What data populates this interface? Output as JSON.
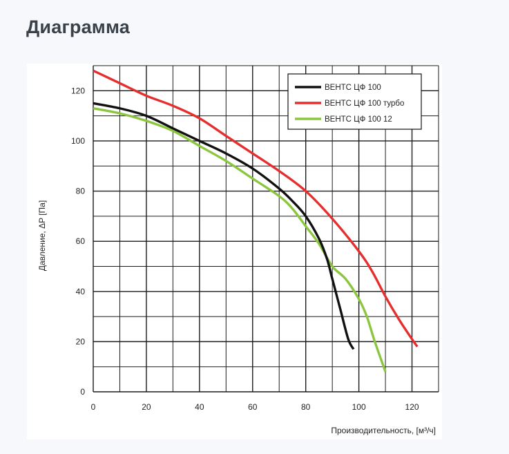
{
  "page": {
    "title": "Диаграмма"
  },
  "colors": {
    "background": "#f6f8fb",
    "panel": "#ffffff",
    "grid": "#1a1a1a"
  },
  "chart_data": {
    "type": "line",
    "title": "",
    "xlabel": "Производительность, [м³/ч]",
    "ylabel": "Давление, ΔP [Па]",
    "xlim": [
      0,
      130
    ],
    "ylim": [
      0,
      130
    ],
    "xticks": [
      0,
      20,
      40,
      60,
      80,
      100,
      120
    ],
    "yticks": [
      0,
      20,
      40,
      60,
      80,
      100,
      120
    ],
    "grid": true,
    "legend_position": "top-right",
    "series": [
      {
        "name": "ВЕНТС ЦФ 100",
        "color": "#111111",
        "points": [
          [
            0,
            115
          ],
          [
            10,
            113
          ],
          [
            20,
            110
          ],
          [
            30,
            105
          ],
          [
            40,
            100
          ],
          [
            50,
            95
          ],
          [
            60,
            89
          ],
          [
            70,
            81
          ],
          [
            75,
            76
          ],
          [
            80,
            70
          ],
          [
            85,
            61
          ],
          [
            88,
            53
          ],
          [
            90,
            45
          ],
          [
            93,
            33
          ],
          [
            96,
            21
          ],
          [
            98,
            17
          ]
        ]
      },
      {
        "name": "ВЕНТС ЦФ 100 турбо",
        "color": "#e52f2f",
        "points": [
          [
            0,
            128
          ],
          [
            10,
            123
          ],
          [
            20,
            118
          ],
          [
            30,
            114
          ],
          [
            40,
            109
          ],
          [
            50,
            102
          ],
          [
            60,
            95
          ],
          [
            70,
            88
          ],
          [
            80,
            80
          ],
          [
            90,
            69
          ],
          [
            100,
            56
          ],
          [
            105,
            48
          ],
          [
            110,
            38
          ],
          [
            115,
            29
          ],
          [
            120,
            21
          ],
          [
            122,
            18
          ]
        ]
      },
      {
        "name": "ВЕНТС ЦФ 100 12",
        "color": "#8cc63f",
        "points": [
          [
            0,
            113
          ],
          [
            10,
            111
          ],
          [
            20,
            108
          ],
          [
            30,
            104
          ],
          [
            40,
            98
          ],
          [
            50,
            92
          ],
          [
            60,
            85
          ],
          [
            70,
            78
          ],
          [
            75,
            73
          ],
          [
            80,
            66
          ],
          [
            85,
            59
          ],
          [
            90,
            50
          ],
          [
            95,
            45
          ],
          [
            100,
            37
          ],
          [
            103,
            30
          ],
          [
            106,
            20
          ],
          [
            110,
            8
          ]
        ]
      }
    ]
  }
}
